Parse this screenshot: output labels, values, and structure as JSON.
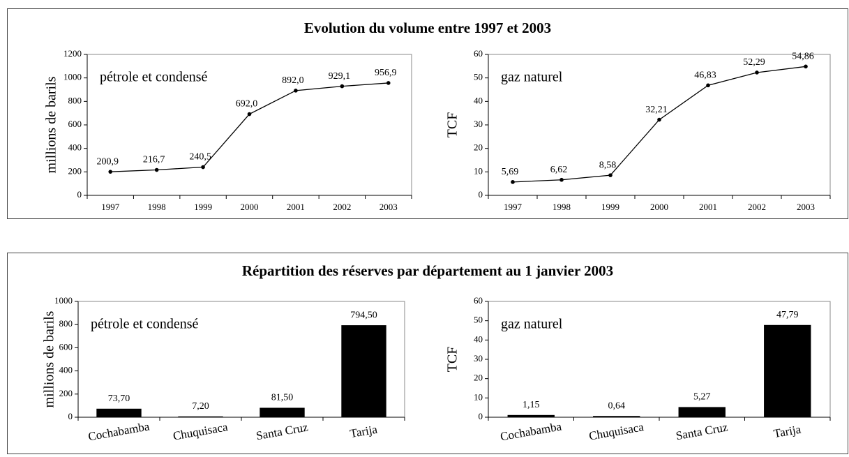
{
  "panel_titles": [
    "Evolution du volume entre 1997 et 2003",
    "Répartition des réserves par département au 1 janvier 2003"
  ],
  "chart_data": [
    {
      "type": "line",
      "ylabel": "millions de barils",
      "annotation": "pétrole et condensé",
      "categories": [
        "1997",
        "1998",
        "1999",
        "2000",
        "2001",
        "2002",
        "2003"
      ],
      "values": [
        200.9,
        216.7,
        240.5,
        692.0,
        892.0,
        929.1,
        956.9
      ],
      "value_labels": [
        "200,9",
        "216,7",
        "240,5",
        "692,0",
        "892,0",
        "929,1",
        "956,9"
      ],
      "color": "#000000",
      "ylim": [
        0,
        1200
      ],
      "yticks": [
        0,
        200,
        400,
        600,
        800,
        1000,
        1200
      ]
    },
    {
      "type": "line",
      "ylabel": "TCF",
      "annotation": "gaz naturel",
      "categories": [
        "1997",
        "1998",
        "1999",
        "2000",
        "2001",
        "2002",
        "2003"
      ],
      "values": [
        5.69,
        6.62,
        8.58,
        32.21,
        46.83,
        52.29,
        54.86
      ],
      "value_labels": [
        "5,69",
        "6,62",
        "8,58",
        "32,21",
        "46,83",
        "52,29",
        "54,86"
      ],
      "color": "#000000",
      "ylim": [
        0,
        60
      ],
      "yticks": [
        0,
        10,
        20,
        30,
        40,
        50,
        60
      ]
    },
    {
      "type": "bar",
      "ylabel": "millions de barils",
      "annotation": "pétrole et condensé",
      "categories": [
        "Cochabamba",
        "Chuquisaca",
        "Santa Cruz",
        "Tarija"
      ],
      "values": [
        73.7,
        7.2,
        81.5,
        794.5
      ],
      "value_labels": [
        "73,70",
        "7,20",
        "81,50",
        "794,50"
      ],
      "color": "#000000",
      "ylim": [
        0,
        1000
      ],
      "yticks": [
        0,
        200,
        400,
        600,
        800,
        1000
      ]
    },
    {
      "type": "bar",
      "ylabel": "TCF",
      "annotation": "gaz naturel",
      "categories": [
        "Cochabamba",
        "Chuquisaca",
        "Santa Cruz",
        "Tarija"
      ],
      "values": [
        1.15,
        0.64,
        5.27,
        47.79
      ],
      "value_labels": [
        "1,15",
        "0,64",
        "5,27",
        "47,79"
      ],
      "color": "#000000",
      "ylim": [
        0,
        60
      ],
      "yticks": [
        0,
        10,
        20,
        30,
        40,
        50,
        60
      ]
    }
  ]
}
